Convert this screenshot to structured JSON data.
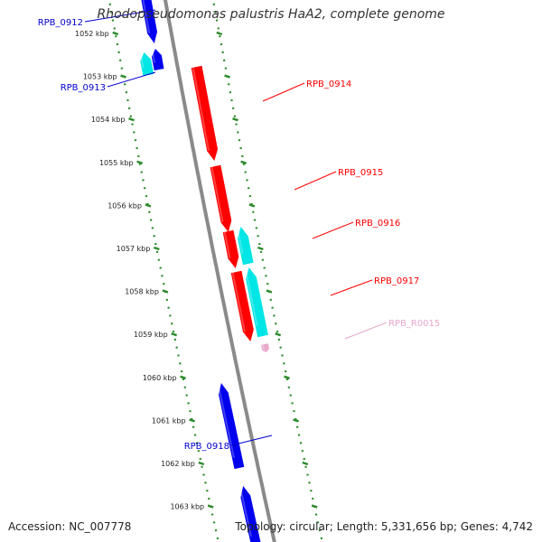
{
  "title": "Rhodopseudomonas palustris HaA2, complete genome",
  "footer": {
    "accession": "Accession: NC_007778",
    "summary": "Topology: circular; Length: 5,331,656 bp; Genes: 4,742"
  },
  "colors": {
    "backbone": "#8a8a8a",
    "tick": "#2e8b2e",
    "cds_forward": "#ff0000",
    "cds_reverse": "#0000ee",
    "rna_reverse": "#00e5e5",
    "rna_forward": "#e8a8cc"
  },
  "ticks": [
    "1052 kbp",
    "1053 kbp",
    "1054 kbp",
    "1055 kbp",
    "1056 kbp",
    "1057 kbp",
    "1058 kbp",
    "1059 kbp",
    "1060 kbp",
    "1061 kbp",
    "1062 kbp",
    "1063 kbp"
  ],
  "genes": [
    {
      "label": "RPB_0912",
      "strand": "reverse",
      "kind": "cds"
    },
    {
      "label": "RPB_0913",
      "strand": "reverse",
      "kind": "cds"
    },
    {
      "label": "RPB_0914",
      "strand": "forward",
      "kind": "cds"
    },
    {
      "label": "RPB_0915",
      "strand": "forward",
      "kind": "cds"
    },
    {
      "label": "RPB_0916",
      "strand": "forward",
      "kind": "cds"
    },
    {
      "label": "RPB_0917",
      "strand": "forward",
      "kind": "cds"
    },
    {
      "label": "RPB_R0015",
      "strand": "forward",
      "kind": "rna"
    },
    {
      "label": "RPB_0918",
      "strand": "reverse",
      "kind": "cds"
    }
  ]
}
